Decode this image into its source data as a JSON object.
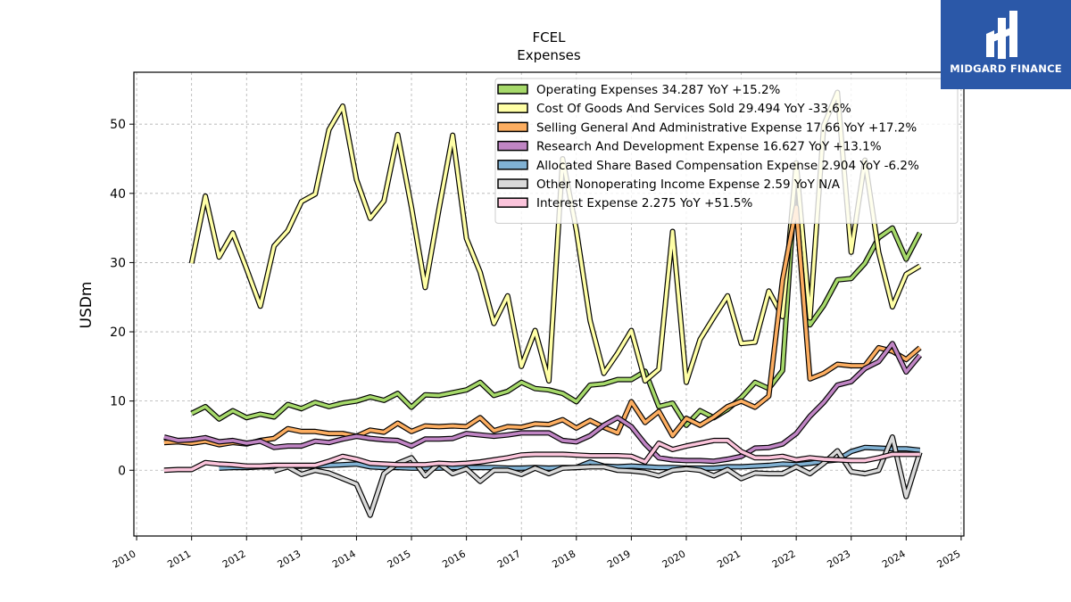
{
  "brand": {
    "name": "MIDGARD FINANCE",
    "bg_color": "#2b58a8"
  },
  "chart_data": {
    "type": "line",
    "title": "FCEL",
    "subtitle": "Expenses",
    "xlabel": "",
    "ylabel": "USDm",
    "xlim": [
      2009.95,
      2025.05
    ],
    "ylim": [
      -9.5,
      57.5
    ],
    "xticks": [
      2010,
      2011,
      2012,
      2013,
      2014,
      2015,
      2016,
      2017,
      2018,
      2019,
      2020,
      2021,
      2022,
      2023,
      2024,
      2025
    ],
    "yticks": [
      0,
      10,
      20,
      30,
      40,
      50
    ],
    "grid": true,
    "legend_position": "top-right",
    "series": [
      {
        "name": "Operating Expenses  34.287 YoY +15.2%",
        "color": "#a6d96a",
        "x": [
          2011.0,
          2011.25,
          2011.5,
          2011.75,
          2012.0,
          2012.25,
          2012.5,
          2012.75,
          2013.0,
          2013.25,
          2013.5,
          2013.75,
          2014.0,
          2014.25,
          2014.5,
          2014.75,
          2015.0,
          2015.25,
          2015.5,
          2015.75,
          2016.0,
          2016.25,
          2016.5,
          2016.75,
          2017.0,
          2017.25,
          2017.5,
          2017.75,
          2018.0,
          2018.25,
          2018.5,
          2018.75,
          2019.0,
          2019.25,
          2019.5,
          2019.75,
          2020.0,
          2020.25,
          2020.5,
          2020.75,
          2021.0,
          2021.25,
          2021.5,
          2021.75,
          2022.0,
          2022.25,
          2022.5,
          2022.75,
          2023.0,
          2023.25,
          2023.5,
          2023.75,
          2024.0,
          2024.25
        ],
        "y": [
          8.2,
          9.2,
          7.4,
          8.6,
          7.6,
          8.1,
          7.7,
          9.5,
          8.9,
          9.8,
          9.2,
          9.7,
          10.0,
          10.6,
          10.1,
          11.1,
          9.1,
          10.9,
          10.8,
          11.2,
          11.6,
          12.7,
          10.8,
          11.4,
          12.7,
          11.8,
          11.6,
          11.1,
          9.9,
          12.3,
          12.5,
          13.1,
          13.1,
          14.3,
          9.2,
          9.7,
          6.5,
          8.6,
          7.6,
          8.8,
          10.5,
          12.7,
          11.8,
          14.4,
          43.5,
          21.0,
          23.8,
          27.5,
          27.7,
          29.9,
          33.6,
          35.0,
          30.5,
          34.3
        ]
      },
      {
        "name": "Cost Of Goods And Services Sold  29.494 YoY -33.6%",
        "color": "#ffffa6",
        "x": [
          2011.0,
          2011.25,
          2011.5,
          2011.75,
          2012.0,
          2012.25,
          2012.5,
          2012.75,
          2013.0,
          2013.25,
          2013.5,
          2013.75,
          2014.0,
          2014.25,
          2014.5,
          2014.75,
          2015.0,
          2015.25,
          2015.5,
          2015.75,
          2016.0,
          2016.25,
          2016.5,
          2016.75,
          2017.0,
          2017.25,
          2017.5,
          2017.75,
          2018.0,
          2018.25,
          2018.5,
          2018.75,
          2019.0,
          2019.25,
          2019.5,
          2019.75,
          2020.0,
          2020.25,
          2020.5,
          2020.75,
          2021.0,
          2021.25,
          2021.5,
          2021.75,
          2022.0,
          2022.25,
          2022.5,
          2022.75,
          2023.0,
          2023.25,
          2023.5,
          2023.75,
          2024.0,
          2024.25
        ],
        "y": [
          29.9,
          39.6,
          30.8,
          34.3,
          29.1,
          23.7,
          32.4,
          34.6,
          38.8,
          39.9,
          49.2,
          52.6,
          42.0,
          36.4,
          38.9,
          48.5,
          38.0,
          26.4,
          37.7,
          48.4,
          33.5,
          28.6,
          21.2,
          25.2,
          15.0,
          20.2,
          12.9,
          45.0,
          34.7,
          21.6,
          14.0,
          16.9,
          20.2,
          12.9,
          14.6,
          34.5,
          12.7,
          18.9,
          22.1,
          25.2,
          18.3,
          18.5,
          25.9,
          22.2,
          44.4,
          22.0,
          49.8,
          54.6,
          31.5,
          44.8,
          31.5,
          23.6,
          28.3,
          29.5
        ]
      },
      {
        "name": "Selling General And Administrative Expense  17.66 YoY +17.2%",
        "color": "#fdae61",
        "x": [
          2010.5,
          2010.75,
          2011.0,
          2011.25,
          2011.5,
          2011.75,
          2012.0,
          2012.25,
          2012.5,
          2012.75,
          2013.0,
          2013.25,
          2013.5,
          2013.75,
          2014.0,
          2014.25,
          2014.5,
          2014.75,
          2015.0,
          2015.25,
          2015.5,
          2015.75,
          2016.0,
          2016.25,
          2016.5,
          2016.75,
          2017.0,
          2017.25,
          2017.5,
          2017.75,
          2018.0,
          2018.25,
          2018.5,
          2018.75,
          2019.0,
          2019.25,
          2019.5,
          2019.75,
          2020.0,
          2020.25,
          2020.5,
          2020.75,
          2021.0,
          2021.25,
          2021.5,
          2021.75,
          2022.0,
          2022.25,
          2022.5,
          2022.75,
          2023.0,
          2023.25,
          2023.5,
          2023.75,
          2024.0,
          2024.25
        ],
        "y": [
          4.0,
          4.1,
          3.9,
          4.2,
          3.7,
          4.0,
          3.8,
          4.3,
          4.6,
          6.0,
          5.6,
          5.6,
          5.3,
          5.3,
          4.9,
          5.8,
          5.5,
          6.8,
          5.6,
          6.4,
          6.3,
          6.4,
          6.3,
          7.6,
          5.7,
          6.3,
          6.2,
          6.7,
          6.6,
          7.3,
          6.1,
          7.2,
          6.2,
          5.4,
          9.9,
          6.9,
          8.5,
          5.0,
          7.5,
          6.5,
          7.7,
          9.2,
          10.0,
          9.1,
          10.7,
          27.5,
          38.0,
          13.2,
          14.0,
          15.3,
          15.1,
          15.1,
          17.7,
          17.2,
          16.0,
          17.7
        ]
      },
      {
        "name": "Research And Development Expense  16.627 YoY +13.1%",
        "color": "#c085c4",
        "x": [
          2010.5,
          2010.75,
          2011.0,
          2011.25,
          2011.5,
          2011.75,
          2012.0,
          2012.25,
          2012.5,
          2012.75,
          2013.0,
          2013.25,
          2013.5,
          2013.75,
          2014.0,
          2014.25,
          2014.5,
          2014.75,
          2015.0,
          2015.25,
          2015.5,
          2015.75,
          2016.0,
          2016.25,
          2016.5,
          2016.75,
          2017.0,
          2017.25,
          2017.5,
          2017.75,
          2018.0,
          2018.25,
          2018.5,
          2018.75,
          2019.0,
          2019.25,
          2019.5,
          2019.75,
          2020.0,
          2020.25,
          2020.5,
          2020.75,
          2021.0,
          2021.25,
          2021.5,
          2021.75,
          2022.0,
          2022.25,
          2022.5,
          2022.75,
          2023.0,
          2023.25,
          2023.5,
          2023.75,
          2024.0,
          2024.25
        ],
        "y": [
          4.8,
          4.3,
          4.4,
          4.7,
          4.1,
          4.3,
          3.9,
          4.2,
          3.3,
          3.5,
          3.5,
          4.2,
          4.0,
          4.5,
          4.9,
          4.6,
          4.4,
          4.3,
          3.5,
          4.5,
          4.5,
          4.6,
          5.3,
          5.1,
          4.9,
          5.1,
          5.4,
          5.4,
          5.4,
          4.3,
          4.1,
          5.0,
          6.5,
          7.6,
          6.3,
          3.8,
          1.8,
          1.5,
          1.4,
          1.4,
          1.3,
          1.6,
          2.0,
          3.2,
          3.3,
          3.8,
          5.3,
          7.8,
          9.8,
          12.3,
          12.8,
          14.7,
          15.7,
          18.3,
          14.2,
          16.6
        ]
      },
      {
        "name": "Allocated Share Based Compensation Expense  2.904 YoY -6.2%",
        "color": "#80b1d3",
        "x": [
          2011.5,
          2011.75,
          2012.0,
          2012.25,
          2012.5,
          2012.75,
          2013.0,
          2013.25,
          2013.5,
          2013.75,
          2014.0,
          2014.25,
          2014.5,
          2014.75,
          2015.0,
          2015.25,
          2015.5,
          2015.75,
          2016.0,
          2016.25,
          2016.5,
          2016.75,
          2017.0,
          2017.25,
          2017.5,
          2017.75,
          2018.0,
          2018.25,
          2018.5,
          2018.75,
          2019.0,
          2019.25,
          2019.5,
          2019.75,
          2020.0,
          2020.25,
          2020.5,
          2020.75,
          2021.0,
          2021.25,
          2021.5,
          2021.75,
          2022.0,
          2022.25,
          2022.5,
          2022.75,
          2023.0,
          2023.25,
          2023.5,
          2023.75,
          2024.0,
          2024.25
        ],
        "y": [
          0.3,
          0.4,
          0.4,
          0.5,
          0.5,
          0.5,
          0.6,
          0.6,
          0.7,
          0.8,
          0.9,
          0.5,
          0.4,
          0.4,
          0.3,
          0.3,
          0.3,
          0.4,
          0.4,
          0.4,
          0.4,
          0.3,
          0.3,
          0.4,
          0.3,
          0.4,
          0.4,
          1.2,
          0.6,
          0.5,
          0.6,
          0.5,
          0.4,
          0.4,
          0.3,
          0.3,
          0.3,
          0.5,
          0.5,
          0.6,
          0.7,
          0.9,
          0.8,
          1.0,
          1.3,
          1.5,
          2.7,
          3.3,
          3.2,
          3.1,
          3.1,
          2.9
        ]
      },
      {
        "name": "Other Nonoperating Income Expense  2.59 YoY N/A",
        "color": "#d9d9d9",
        "x": [
          2012.5,
          2012.75,
          2013.0,
          2013.25,
          2013.5,
          2013.75,
          2014.0,
          2014.25,
          2014.5,
          2014.75,
          2015.0,
          2015.25,
          2015.5,
          2015.75,
          2016.0,
          2016.25,
          2016.5,
          2016.75,
          2017.0,
          2017.25,
          2017.5,
          2017.75,
          2018.0,
          2018.25,
          2018.5,
          2018.75,
          2019.0,
          2019.25,
          2019.5,
          2019.75,
          2020.0,
          2020.25,
          2020.5,
          2020.75,
          2021.0,
          2021.25,
          2021.5,
          2021.75,
          2022.0,
          2022.25,
          2022.5,
          2022.75,
          2023.0,
          2023.25,
          2023.5,
          2023.75,
          2024.0,
          2024.25
        ],
        "y": [
          -0.1,
          0.5,
          -0.6,
          0.0,
          -0.4,
          -1.2,
          -2.0,
          -6.5,
          -0.5,
          1.0,
          1.8,
          -0.8,
          1.0,
          -0.5,
          0.2,
          -1.6,
          0.0,
          0.0,
          -0.6,
          0.3,
          -0.5,
          0.3,
          0.4,
          0.5,
          0.5,
          0.0,
          -0.1,
          -0.3,
          -0.8,
          0.0,
          0.2,
          0.0,
          -0.8,
          0.1,
          -1.2,
          -0.4,
          -0.5,
          -0.5,
          0.5,
          -0.5,
          1.0,
          2.8,
          -0.2,
          -0.5,
          0.0,
          4.8,
          -3.8,
          2.6
        ]
      },
      {
        "name": "Interest Expense  2.275 YoY +51.5%",
        "color": "#fbc4db",
        "x": [
          2010.5,
          2010.75,
          2011.0,
          2011.25,
          2011.5,
          2011.75,
          2012.0,
          2012.25,
          2012.5,
          2012.75,
          2013.0,
          2013.25,
          2013.5,
          2013.75,
          2014.0,
          2014.25,
          2014.5,
          2014.75,
          2015.0,
          2015.25,
          2015.5,
          2015.75,
          2016.0,
          2016.25,
          2016.5,
          2016.75,
          2017.0,
          2017.25,
          2017.5,
          2017.75,
          2018.0,
          2018.25,
          2018.5,
          2018.75,
          2019.0,
          2019.25,
          2019.5,
          2019.75,
          2020.0,
          2020.25,
          2020.5,
          2020.75,
          2021.0,
          2021.25,
          2021.5,
          2021.75,
          2022.0,
          2022.25,
          2022.5,
          2022.75,
          2023.0,
          2023.25,
          2023.5,
          2023.75,
          2024.0,
          2024.25
        ],
        "y": [
          0.0,
          0.1,
          0.1,
          1.1,
          0.9,
          0.8,
          0.6,
          0.6,
          0.7,
          0.7,
          0.7,
          0.7,
          1.3,
          2.0,
          1.6,
          1.0,
          0.9,
          0.8,
          0.8,
          0.8,
          1.0,
          0.9,
          1.0,
          1.2,
          1.5,
          1.8,
          2.2,
          2.3,
          2.3,
          2.3,
          2.2,
          2.1,
          2.1,
          2.1,
          2.0,
          1.2,
          3.9,
          3.0,
          3.5,
          3.9,
          4.3,
          4.3,
          2.7,
          1.8,
          1.8,
          2.0,
          1.5,
          1.8,
          1.6,
          1.5,
          1.4,
          1.4,
          1.8,
          2.3,
          2.3,
          2.3
        ]
      }
    ]
  }
}
